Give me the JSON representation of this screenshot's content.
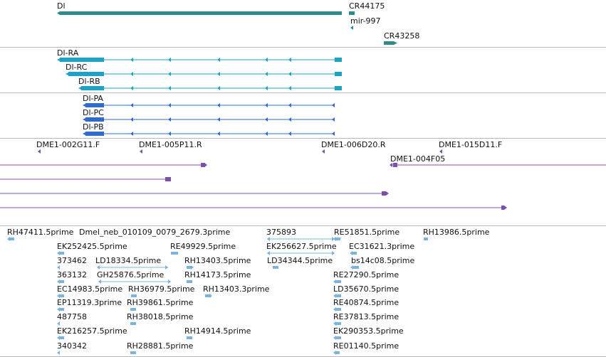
{
  "colors": {
    "gene": "#2e8b8b",
    "transcript_rna": "#19a4c4",
    "transcript_protein": "#2f6bcf",
    "clone": "#7a4fae",
    "est": "#7ab4dc",
    "separator": "#b8b8b8"
  },
  "tracks": {
    "genes": {
      "labels": [
        "Dl",
        "CR44175",
        "mir-997",
        "CR43258"
      ]
    },
    "transcripts": {
      "labels": [
        "Dl-RA",
        "Dl-RC",
        "Dl-RB"
      ]
    },
    "proteins": {
      "labels": [
        "Dl-PA",
        "Dl-PC",
        "Dl-PB"
      ]
    },
    "clones": {
      "labels": [
        "DME1-002G11.F",
        "DME1-005P11.R",
        "DME1-006D20.R",
        "DME1-015D11.F",
        "DME1-004F05"
      ]
    },
    "ests": {
      "labels": [
        "RH47411.5prime",
        "Dmel_neb_010109_0079_2679.3prime",
        "375893",
        "RE51851.5prime",
        "RH13986.5prime",
        "EK252425.5prime",
        "RE49929.5prime",
        "EK256627.5prime",
        "EC31621.3prime",
        "373462",
        "LD18334.5prime",
        "RH13403.5prime",
        "LD34344.5prime",
        "bs14c08.5prime",
        "363132",
        "GH25876.5prime",
        "RH14173.5prime",
        "RE27290.5prime",
        "EC14983.5prime",
        "RH36979.5prime",
        "RH13403.3prime",
        "LD35670.5prime",
        "EP11319.3prime",
        "RH39861.5prime",
        "RE40874.5prime",
        "487758",
        "RH38018.5prime",
        "RE37813.5prime",
        "EK216257.5prime",
        "RH14914.5prime",
        "EK290353.5prime",
        "340342",
        "RH28881.5prime",
        "RE01140.5prime"
      ]
    }
  }
}
